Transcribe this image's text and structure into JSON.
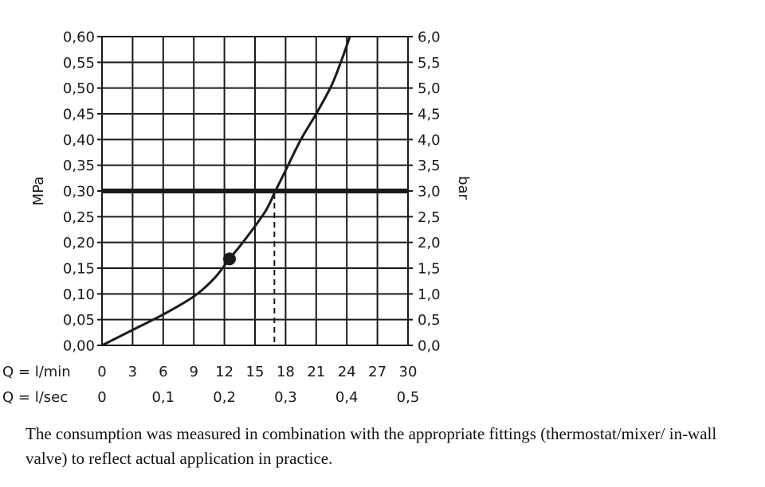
{
  "chart_data": {
    "type": "line",
    "ylabel_left": "MPa",
    "ylabel_right": "bar",
    "y_left_ticks": [
      "0,00",
      "0,05",
      "0,10",
      "0,15",
      "0,20",
      "0,25",
      "0,30",
      "0,35",
      "0,40",
      "0,45",
      "0,50",
      "0,55",
      "0,60"
    ],
    "y_right_ticks": [
      "0,0",
      "0,5",
      "1,0",
      "1,5",
      "2,0",
      "2,5",
      "3,0",
      "3,5",
      "4,0",
      "4,5",
      "5,0",
      "5,5",
      "6,0"
    ],
    "ylim": [
      0,
      0.6
    ],
    "xlim_lmin": [
      0,
      30
    ],
    "x_rows": [
      {
        "label": "Q = l/min",
        "ticks": [
          {
            "x": 0,
            "text": "0"
          },
          {
            "x": 3,
            "text": "3"
          },
          {
            "x": 6,
            "text": "6"
          },
          {
            "x": 9,
            "text": "9"
          },
          {
            "x": 12,
            "text": "12"
          },
          {
            "x": 15,
            "text": "15"
          },
          {
            "x": 18,
            "text": "18"
          },
          {
            "x": 21,
            "text": "21"
          },
          {
            "x": 24,
            "text": "24"
          },
          {
            "x": 27,
            "text": "27"
          },
          {
            "x": 30,
            "text": "30"
          }
        ]
      },
      {
        "label": "Q = l/sec",
        "ticks": [
          {
            "x": 0,
            "text": "0"
          },
          {
            "x": 6,
            "text": "0,1"
          },
          {
            "x": 12,
            "text": "0,2"
          },
          {
            "x": 18,
            "text": "0,3"
          },
          {
            "x": 24,
            "text": "0,4"
          },
          {
            "x": 30,
            "text": "0,5"
          }
        ]
      }
    ],
    "grid": true,
    "series": [
      {
        "x": [
          0,
          3,
          6,
          9,
          11,
          12.5,
          14,
          16,
          17,
          18,
          19.5,
          21,
          22.5,
          23.5,
          24.3
        ],
        "y": [
          0,
          0.03,
          0.06,
          0.095,
          0.13,
          0.168,
          0.205,
          0.26,
          0.3,
          0.34,
          0.4,
          0.45,
          0.505,
          0.555,
          0.6
        ]
      }
    ],
    "reference_line": {
      "y": 0.3
    },
    "marker": {
      "x": 12.5,
      "y": 0.168
    },
    "drop_line": {
      "x": 16.9,
      "y": 0.3
    }
  },
  "caption": "The consumption was measured in combination with the appropriate fittings (thermostat/mixer/ in-wall valve) to reflect actual application in practice."
}
